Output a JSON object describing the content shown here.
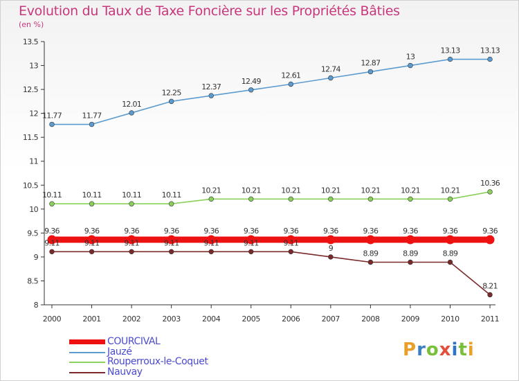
{
  "header": {
    "title": "Evolution du Taux de Taxe Foncière sur les Propriétés Bâties",
    "unit": "(en %)"
  },
  "logo": {
    "letters": [
      "P",
      "r",
      "o",
      "x",
      "i",
      "t",
      "i"
    ],
    "colors": [
      "#e9a02a",
      "#3b7fc4",
      "#7abf3a",
      "#e24f3c",
      "#2a76c4",
      "#7abf3a",
      "#e9a02a"
    ]
  },
  "chart_data": {
    "type": "line",
    "x": [
      "2000",
      "2001",
      "2002",
      "2003",
      "2004",
      "2005",
      "2006",
      "2007",
      "2008",
      "2009",
      "2010",
      "2011"
    ],
    "ylim": [
      8,
      13.5
    ],
    "yticks": [
      "8",
      "8.5",
      "9",
      "9.5",
      "10",
      "10.5",
      "11",
      "11.5",
      "12",
      "12.5",
      "13",
      "13.5"
    ],
    "grid": false,
    "legend_position": "bottom-left",
    "series": [
      {
        "name": "COURCIVAL",
        "color": "#ee1111",
        "values": [
          9.36,
          9.36,
          9.36,
          9.36,
          9.36,
          9.36,
          9.36,
          9.36,
          9.36,
          9.36,
          9.36,
          9.36
        ],
        "labels": [
          "9.36",
          "9.36",
          "9.36",
          "9.36",
          "9.36",
          "9.36",
          "9.36",
          "9.36",
          "9.36",
          "9.36",
          "9.36",
          "9.36"
        ]
      },
      {
        "name": "Jauzé",
        "color": "#5b9bd0",
        "values": [
          11.77,
          11.77,
          12.01,
          12.25,
          12.37,
          12.49,
          12.61,
          12.74,
          12.87,
          13,
          13.13,
          13.13
        ],
        "labels": [
          "11.77",
          "11.77",
          "12.01",
          "12.25",
          "12.37",
          "12.49",
          "12.61",
          "12.74",
          "12.87",
          "13",
          "13.13",
          "13.13"
        ]
      },
      {
        "name": "Rouperroux-le-Coquet",
        "color": "#8ad05a",
        "values": [
          10.11,
          10.11,
          10.11,
          10.11,
          10.21,
          10.21,
          10.21,
          10.21,
          10.21,
          10.21,
          10.21,
          10.36
        ],
        "labels": [
          "10.11",
          "10.11",
          "10.11",
          "10.11",
          "10.21",
          "10.21",
          "10.21",
          "10.21",
          "10.21",
          "10.21",
          "10.21",
          "10.36"
        ]
      },
      {
        "name": "Nauvay",
        "color": "#7a2a2a",
        "values": [
          9.11,
          9.11,
          9.11,
          9.11,
          9.11,
          9.11,
          9.11,
          9,
          8.89,
          8.89,
          8.89,
          8.21
        ],
        "labels": [
          "9.11",
          "9.11",
          "9.11",
          "9.11",
          "9.11",
          "9.11",
          "9.11",
          "9",
          "8.89",
          "8.89",
          "8.89",
          "8.21"
        ]
      }
    ]
  }
}
